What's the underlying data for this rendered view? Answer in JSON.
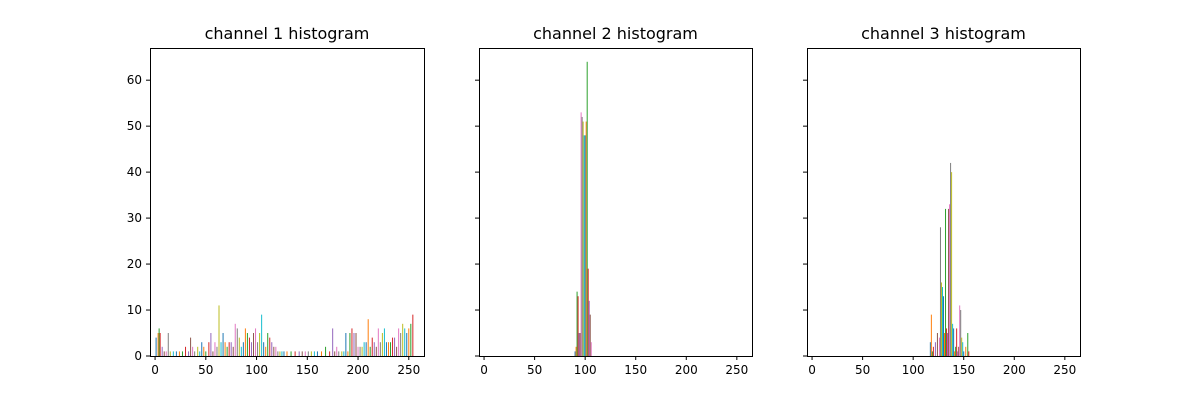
{
  "chart_data": [
    {
      "type": "bar",
      "title": "channel 1 histogram",
      "xlim": [
        -5,
        265
      ],
      "ylim": [
        0,
        67
      ],
      "xticks": [
        0,
        50,
        100,
        150,
        200,
        250
      ],
      "yticks": [
        0,
        10,
        20,
        30,
        40,
        50,
        60
      ],
      "grid": false,
      "palette": [
        "#1f77b4",
        "#ff7f0e",
        "#2ca02c",
        "#d62728",
        "#9467bd",
        "#8c564b",
        "#e377c2",
        "#7f7f7f",
        "#bcbd22",
        "#17becf"
      ],
      "bins": [
        [
          1,
          4
        ],
        [
          3,
          5
        ],
        [
          4,
          6
        ],
        [
          5,
          5
        ],
        [
          7,
          2
        ],
        [
          9,
          1
        ],
        [
          11,
          1
        ],
        [
          13,
          5
        ],
        [
          15,
          1
        ],
        [
          18,
          1
        ],
        [
          21,
          1
        ],
        [
          24,
          1
        ],
        [
          27,
          1
        ],
        [
          30,
          2
        ],
        [
          33,
          1
        ],
        [
          35,
          4
        ],
        [
          37,
          2
        ],
        [
          39,
          1
        ],
        [
          42,
          2
        ],
        [
          44,
          1
        ],
        [
          46,
          3
        ],
        [
          48,
          2
        ],
        [
          50,
          1
        ],
        [
          53,
          3
        ],
        [
          55,
          5
        ],
        [
          57,
          1
        ],
        [
          59,
          3
        ],
        [
          61,
          2
        ],
        [
          63,
          11
        ],
        [
          65,
          3
        ],
        [
          67,
          5
        ],
        [
          69,
          3
        ],
        [
          71,
          2
        ],
        [
          73,
          3
        ],
        [
          75,
          3
        ],
        [
          77,
          2
        ],
        [
          79,
          7
        ],
        [
          81,
          6
        ],
        [
          83,
          4
        ],
        [
          85,
          2
        ],
        [
          87,
          3
        ],
        [
          89,
          6
        ],
        [
          91,
          5
        ],
        [
          93,
          4
        ],
        [
          95,
          3
        ],
        [
          97,
          5
        ],
        [
          99,
          6
        ],
        [
          101,
          3
        ],
        [
          103,
          5
        ],
        [
          105,
          9
        ],
        [
          107,
          3
        ],
        [
          109,
          2
        ],
        [
          111,
          5
        ],
        [
          113,
          4
        ],
        [
          115,
          3
        ],
        [
          117,
          2
        ],
        [
          119,
          2
        ],
        [
          121,
          1
        ],
        [
          123,
          1
        ],
        [
          125,
          1
        ],
        [
          127,
          1
        ],
        [
          130,
          1
        ],
        [
          134,
          1
        ],
        [
          138,
          1
        ],
        [
          142,
          1
        ],
        [
          145,
          1
        ],
        [
          148,
          1
        ],
        [
          151,
          1
        ],
        [
          154,
          1
        ],
        [
          157,
          1
        ],
        [
          160,
          1
        ],
        [
          164,
          1
        ],
        [
          168,
          2
        ],
        [
          172,
          1
        ],
        [
          175,
          6
        ],
        [
          177,
          1
        ],
        [
          179,
          2
        ],
        [
          181,
          1
        ],
        [
          184,
          1
        ],
        [
          186,
          1
        ],
        [
          188,
          5
        ],
        [
          190,
          1
        ],
        [
          192,
          5
        ],
        [
          194,
          6
        ],
        [
          196,
          5
        ],
        [
          198,
          5
        ],
        [
          200,
          2
        ],
        [
          202,
          2
        ],
        [
          204,
          2
        ],
        [
          206,
          3
        ],
        [
          208,
          3
        ],
        [
          210,
          8
        ],
        [
          212,
          2
        ],
        [
          214,
          4
        ],
        [
          216,
          3
        ],
        [
          218,
          2
        ],
        [
          220,
          6
        ],
        [
          222,
          3
        ],
        [
          224,
          5
        ],
        [
          226,
          6
        ],
        [
          228,
          3
        ],
        [
          230,
          3
        ],
        [
          232,
          3
        ],
        [
          234,
          4
        ],
        [
          236,
          4
        ],
        [
          238,
          2
        ],
        [
          240,
          6
        ],
        [
          242,
          5
        ],
        [
          244,
          7
        ],
        [
          246,
          6
        ],
        [
          248,
          5
        ],
        [
          250,
          6
        ],
        [
          252,
          7
        ],
        [
          254,
          9
        ]
      ]
    },
    {
      "type": "bar",
      "title": "channel 2 histogram",
      "xlim": [
        -5,
        265
      ],
      "ylim": [
        0,
        67
      ],
      "xticks": [
        0,
        50,
        100,
        150,
        200,
        250
      ],
      "yticks": [
        0,
        10,
        20,
        30,
        40,
        50,
        60
      ],
      "grid": false,
      "palette": [
        "#1f77b4",
        "#ff7f0e",
        "#2ca02c",
        "#d62728",
        "#9467bd",
        "#8c564b",
        "#e377c2",
        "#7f7f7f",
        "#bcbd22",
        "#17becf"
      ],
      "bins": [
        [
          90,
          1
        ],
        [
          91,
          2
        ],
        [
          92,
          14
        ],
        [
          93,
          13
        ],
        [
          94,
          5
        ],
        [
          95,
          5
        ],
        [
          96,
          53
        ],
        [
          97,
          52
        ],
        [
          98,
          51
        ],
        [
          99,
          48
        ],
        [
          100,
          48
        ],
        [
          101,
          51
        ],
        [
          102,
          64
        ],
        [
          103,
          19
        ],
        [
          104,
          12
        ],
        [
          105,
          9
        ],
        [
          106,
          3
        ]
      ]
    },
    {
      "type": "bar",
      "title": "channel 3 histogram",
      "xlim": [
        -5,
        265
      ],
      "ylim": [
        0,
        67
      ],
      "xticks": [
        0,
        50,
        100,
        150,
        200,
        250
      ],
      "yticks": [
        0,
        10,
        20,
        30,
        40,
        50,
        60
      ],
      "grid": false,
      "palette": [
        "#1f77b4",
        "#ff7f0e",
        "#2ca02c",
        "#d62728",
        "#9467bd",
        "#8c564b",
        "#e377c2",
        "#7f7f7f",
        "#bcbd22",
        "#17becf"
      ],
      "bins": [
        [
          117,
          3
        ],
        [
          118,
          9
        ],
        [
          119,
          1
        ],
        [
          120,
          2
        ],
        [
          122,
          3
        ],
        [
          124,
          5
        ],
        [
          126,
          4
        ],
        [
          127,
          28
        ],
        [
          128,
          16
        ],
        [
          129,
          15
        ],
        [
          130,
          13
        ],
        [
          131,
          5
        ],
        [
          132,
          32
        ],
        [
          133,
          6
        ],
        [
          134,
          5
        ],
        [
          135,
          32
        ],
        [
          136,
          33
        ],
        [
          137,
          42
        ],
        [
          138,
          40
        ],
        [
          139,
          7
        ],
        [
          140,
          6
        ],
        [
          141,
          1
        ],
        [
          142,
          2
        ],
        [
          143,
          6
        ],
        [
          144,
          1
        ],
        [
          145,
          2
        ],
        [
          146,
          11
        ],
        [
          147,
          10
        ],
        [
          148,
          4
        ],
        [
          149,
          3
        ],
        [
          150,
          1
        ],
        [
          152,
          2
        ],
        [
          154,
          5
        ],
        [
          155,
          1
        ]
      ]
    }
  ]
}
